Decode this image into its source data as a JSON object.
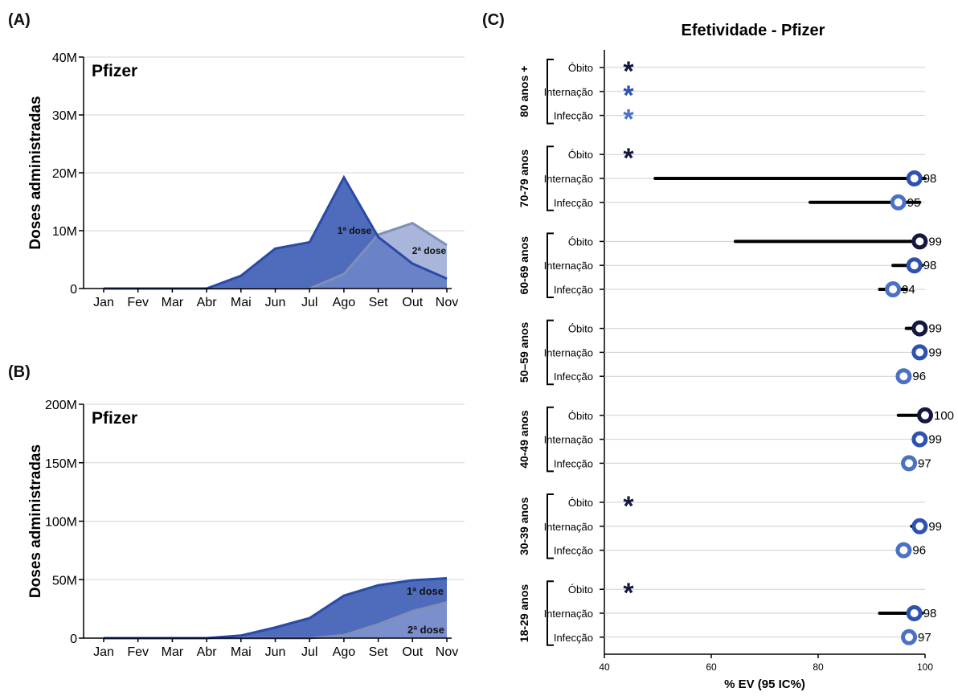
{
  "panels": {
    "a": "(A)",
    "b": "(B)",
    "c": "(C)"
  },
  "colors": {
    "dose1_fill": "#4f6bbb",
    "dose1_line": "#2a4aa8",
    "dose2_fill_a": "#a9b5da",
    "dose2_fill_b": "#7c8fcd",
    "dose2_line": "#7f8fb7",
    "dark_navy": "#14173f",
    "mid_blue": "#2d52b0",
    "light_blue": "#4a72c4",
    "ci_line": "#000000"
  },
  "chart_data": [
    {
      "id": "A",
      "type": "area",
      "title": "Pfizer",
      "ylabel": "Doses administradas",
      "xlabel": "",
      "x": [
        "Jan",
        "Fev",
        "Mar",
        "Abr",
        "Mai",
        "Jun",
        "Jul",
        "Ago",
        "Set",
        "Out",
        "Nov"
      ],
      "yticks": [
        "0",
        "10M",
        "20M",
        "30M",
        "40M"
      ],
      "ylim": [
        0,
        40
      ],
      "unit": "M",
      "grid": true,
      "series": [
        {
          "name": "1ª dose",
          "values": [
            0,
            0,
            0,
            0,
            2.2,
            6.9,
            8.0,
            19.2,
            8.9,
            4.3,
            1.7
          ]
        },
        {
          "name": "2ª dose",
          "values": [
            0,
            0,
            0,
            0,
            0,
            0,
            0,
            2.5,
            9.3,
            11.3,
            7.5
          ]
        }
      ]
    },
    {
      "id": "B",
      "type": "area",
      "title": "Pfizer",
      "ylabel": "Doses administradas",
      "xlabel": "",
      "x": [
        "Jan",
        "Fev",
        "Mar",
        "Abr",
        "Mai",
        "Jun",
        "Jul",
        "Ago",
        "Set",
        "Out",
        "Nov"
      ],
      "yticks": [
        "0",
        "50M",
        "100M",
        "150M",
        "200M"
      ],
      "ylim": [
        0,
        200
      ],
      "unit": "M",
      "grid": true,
      "series": [
        {
          "name": "1ª dose",
          "values": [
            0,
            0,
            0,
            0,
            2.2,
            9.1,
            17.1,
            36.3,
            45.2,
            49.5,
            51.2
          ]
        },
        {
          "name": "2ª dose",
          "values": [
            0,
            0,
            0,
            0,
            0,
            0,
            0,
            2.5,
            11.8,
            23.1,
            30.6
          ]
        }
      ]
    },
    {
      "id": "C",
      "type": "forest",
      "title": "Efetividade - Pfizer",
      "xlabel": "% EV (95 IC%)",
      "xticks": [
        "40",
        "60",
        "80",
        "100"
      ],
      "xlim": [
        40,
        100
      ],
      "grid": true,
      "groups": [
        {
          "name": "80 anos +",
          "rows": [
            {
              "label": "Óbito",
              "kind": "death",
              "star": true
            },
            {
              "label": "Internação",
              "kind": "hosp",
              "star": true
            },
            {
              "label": "Infecção",
              "kind": "inf",
              "star": true
            }
          ]
        },
        {
          "name": "70-79 anos",
          "rows": [
            {
              "label": "Óbito",
              "kind": "death",
              "star": true
            },
            {
              "label": "Internação",
              "kind": "hosp",
              "est": 98,
              "lo": 49.5,
              "hi": 100,
              "text": "98"
            },
            {
              "label": "Infecção",
              "kind": "inf",
              "est": 95,
              "lo": 78.5,
              "hi": 99,
              "text": "95"
            }
          ]
        },
        {
          "name": "60-69 anos",
          "rows": [
            {
              "label": "Óbito",
              "kind": "death",
              "est": 99,
              "lo": 64.5,
              "hi": 100,
              "text": "99"
            },
            {
              "label": "Internação",
              "kind": "hosp",
              "est": 98,
              "lo": 94,
              "hi": 99.5,
              "text": "98"
            },
            {
              "label": "Infecção",
              "kind": "inf",
              "est": 94,
              "lo": 91.5,
              "hi": 96.5,
              "text": "94"
            }
          ]
        },
        {
          "name": "50–59 anos",
          "rows": [
            {
              "label": "Óbito",
              "kind": "death",
              "est": 99,
              "lo": 96.5,
              "hi": 99.8,
              "text": "99"
            },
            {
              "label": "Internação",
              "kind": "hosp",
              "est": 99,
              "lo": 98,
              "hi": 99.8,
              "text": "99"
            },
            {
              "label": "Infecção",
              "kind": "inf",
              "est": 96,
              "lo": 95.5,
              "hi": 97,
              "text": "96"
            }
          ]
        },
        {
          "name": "40-49 anos",
          "rows": [
            {
              "label": "Óbito",
              "kind": "death",
              "est": 100,
              "lo": 95,
              "hi": 100,
              "text": "100"
            },
            {
              "label": "Internação",
              "kind": "hosp",
              "est": 99,
              "lo": 98,
              "hi": 99.8,
              "text": "99"
            },
            {
              "label": "Infecção",
              "kind": "inf",
              "est": 97,
              "lo": 96,
              "hi": 97.5,
              "text": "97"
            }
          ]
        },
        {
          "name": "30-39 anos",
          "rows": [
            {
              "label": "Óbito",
              "kind": "death",
              "star": true
            },
            {
              "label": "Internação",
              "kind": "hosp",
              "est": 99,
              "lo": 97.5,
              "hi": 99.8,
              "text": "99"
            },
            {
              "label": "Infecção",
              "kind": "inf",
              "est": 96,
              "lo": 95.5,
              "hi": 97,
              "text": "96"
            }
          ]
        },
        {
          "name": "18-29 anos",
          "rows": [
            {
              "label": "Óbito",
              "kind": "death",
              "star": true
            },
            {
              "label": "Internação",
              "kind": "hosp",
              "est": 98,
              "lo": 91.5,
              "hi": 99.5,
              "text": "98"
            },
            {
              "label": "Infecção",
              "kind": "inf",
              "est": 97,
              "lo": 96,
              "hi": 97.5,
              "text": "97"
            }
          ]
        }
      ]
    }
  ]
}
